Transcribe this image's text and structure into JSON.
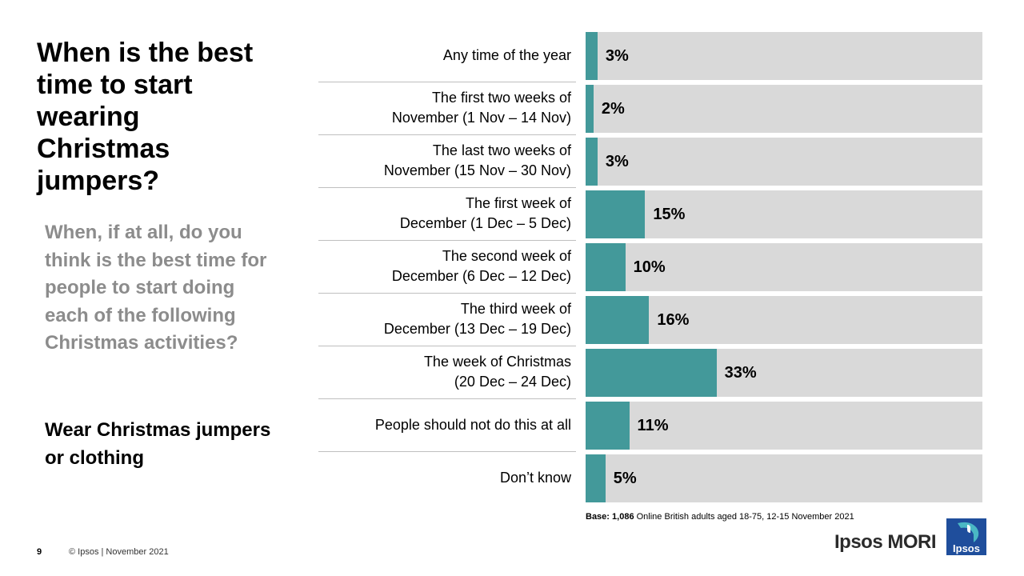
{
  "title": "When is the best time to start wearing Christmas jumpers?",
  "question": "When, if at all, do you think is the best time for people to start doing each of the following Christmas activities?",
  "activity": "Wear Christmas jumpers or clothing",
  "colors": {
    "bar": "#43999a",
    "track": "#d9d9d9",
    "question_text": "#8c8c8c"
  },
  "chart_data": {
    "type": "bar",
    "orientation": "horizontal",
    "categories": [
      "Any time of the year",
      "The first two weeks of\nNovember (1 Nov – 14 Nov)",
      "The last two weeks of\nNovember (15 Nov – 30 Nov)",
      "The first week of\nDecember (1 Dec – 5 Dec)",
      "The second week of\nDecember (6 Dec – 12 Dec)",
      "The third week of\nDecember (13 Dec – 19 Dec)",
      "The week of Christmas\n(20 Dec – 24 Dec)",
      "People should not do this at all",
      "Don’t know"
    ],
    "values": [
      3,
      2,
      3,
      15,
      10,
      16,
      33,
      11,
      5
    ],
    "value_labels": [
      "3%",
      "2%",
      "3%",
      "15%",
      "10%",
      "16%",
      "33%",
      "11%",
      "5%"
    ],
    "xlim": [
      0,
      100
    ],
    "grid": false,
    "legend": "none"
  },
  "footer": {
    "base_label": "Base:",
    "base_count": "1,086",
    "base_text": "Online British adults aged 18-75, 12-15 November 2021",
    "page_number": "9",
    "copyright": "© Ipsos | November 2021",
    "brand": "Ipsos MORI",
    "logo_text": "Ipsos"
  }
}
